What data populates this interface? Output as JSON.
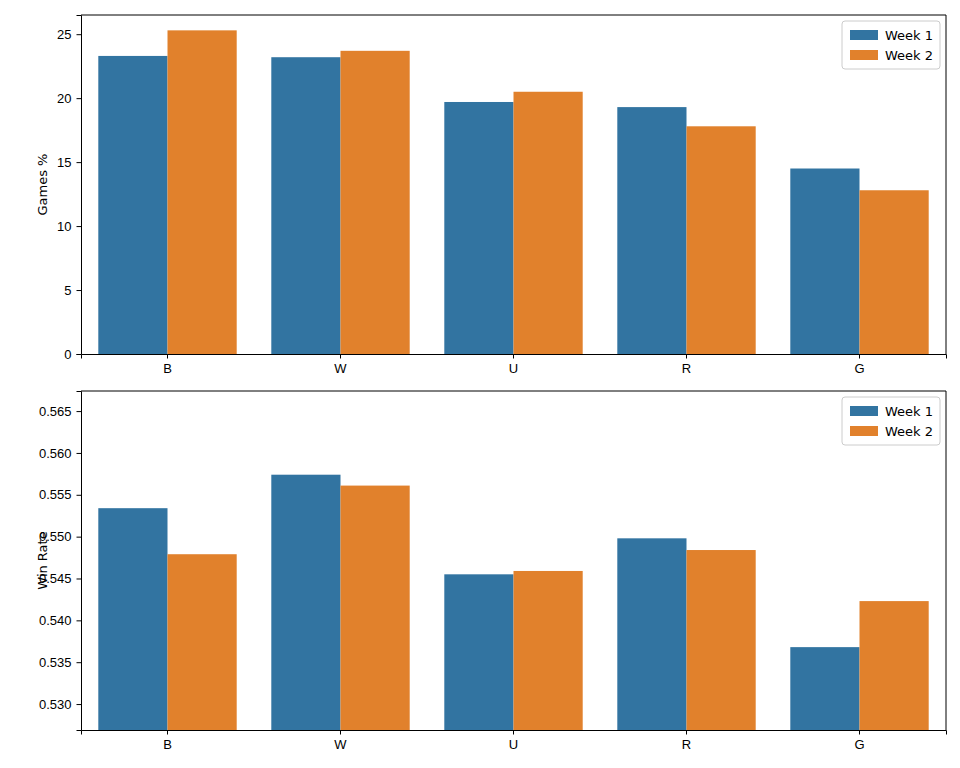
{
  "chart_data": [
    {
      "type": "bar",
      "y_label": "Games %",
      "categories": [
        "B",
        "W",
        "U",
        "R",
        "G"
      ],
      "series": [
        {
          "name": "Week 1",
          "color": "#3274a1",
          "values": [
            23.3,
            23.2,
            19.7,
            19.3,
            14.5
          ]
        },
        {
          "name": "Week 2",
          "color": "#e1812c",
          "values": [
            25.3,
            23.7,
            20.5,
            17.8,
            12.8
          ]
        }
      ],
      "ylim": [
        0,
        26.5
      ],
      "yticks": [
        0,
        5,
        10,
        15,
        20,
        25
      ],
      "legend": "upper right"
    },
    {
      "type": "bar",
      "y_label": "Win Rate",
      "categories": [
        "B",
        "W",
        "U",
        "R",
        "G"
      ],
      "series": [
        {
          "name": "Week 1",
          "color": "#3274a1",
          "values": [
            0.5534,
            0.5574,
            0.5455,
            0.5498,
            0.5368
          ]
        },
        {
          "name": "Week 2",
          "color": "#e1812c",
          "values": [
            0.5479,
            0.5561,
            0.5459,
            0.5484,
            0.5423
          ]
        }
      ],
      "ylim": [
        0.5269,
        0.5674
      ],
      "yticks": [
        {
          "value": 0.53,
          "label": "0.530"
        },
        {
          "value": 0.535,
          "label": "0.535"
        },
        {
          "value": 0.54,
          "label": "0.540"
        },
        {
          "value": 0.545,
          "label": "0.545"
        },
        {
          "value": 0.55,
          "label": "0.550"
        },
        {
          "value": 0.555,
          "label": "0.555"
        },
        {
          "value": 0.56,
          "label": "0.560"
        },
        {
          "value": 0.565,
          "label": "0.565"
        }
      ],
      "legend": "upper right"
    }
  ]
}
